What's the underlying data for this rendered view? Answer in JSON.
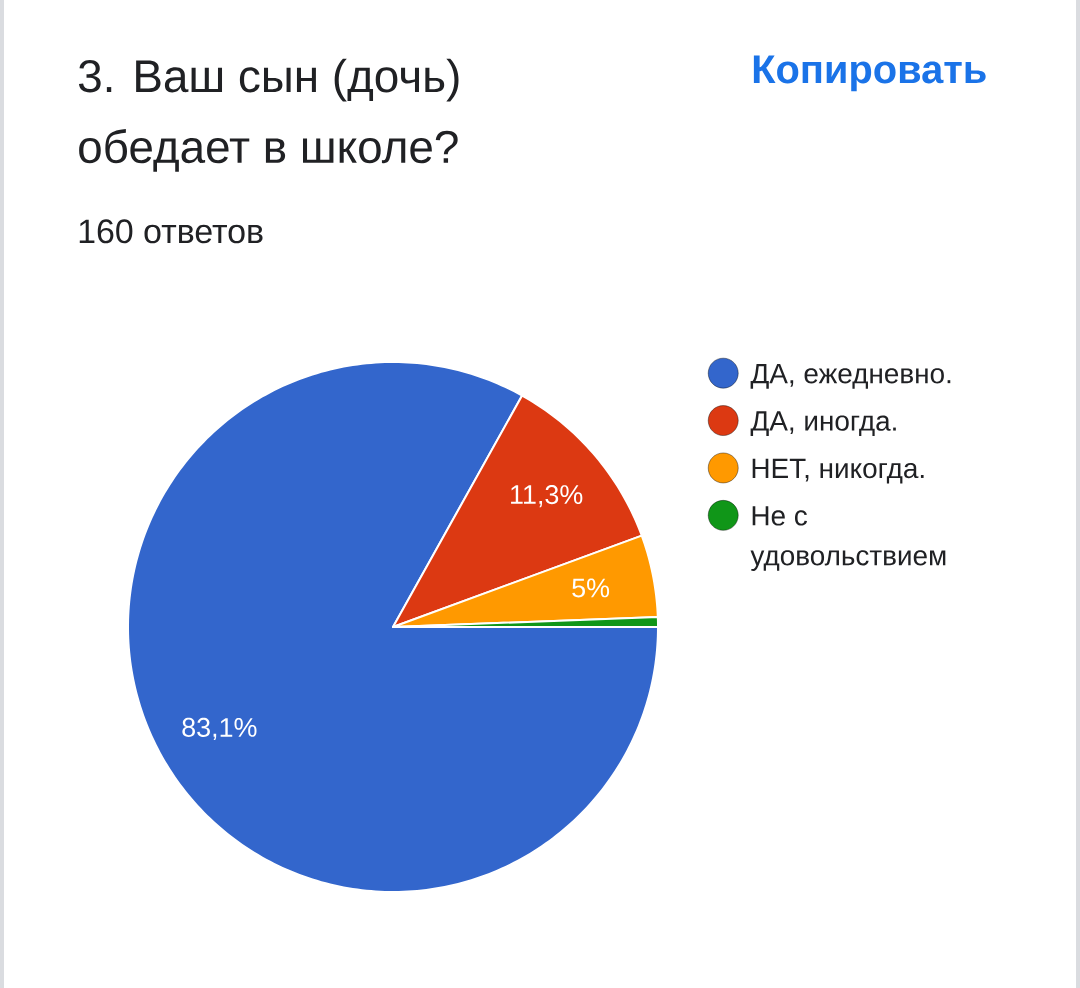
{
  "chart_data": {
    "type": "pie",
    "title": "3. Ваш сын (дочь) обедает в школе?",
    "subtitle": "160 ответов",
    "annotations": [
      "Копировать"
    ],
    "categories": [
      "ДА, ежедневно.",
      "ДА, иногда.",
      "НЕТ, никогда.",
      "Не с удовольствием"
    ],
    "values": [
      83.1,
      11.3,
      5,
      0.6
    ],
    "colors": [
      "#3366cc",
      "#dc3912",
      "#ff9900",
      "#109618"
    ],
    "value_labels": [
      "83,1%",
      "11,3%",
      "5%",
      null
    ],
    "legend": "right"
  }
}
